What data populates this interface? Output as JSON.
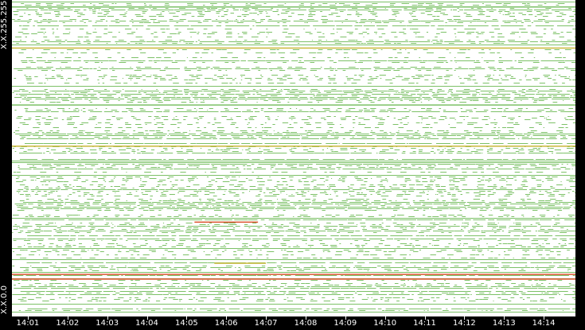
{
  "chart_data": {
    "type": "heatmap",
    "title": "",
    "y_axis": {
      "top_label": "X.X.255.255",
      "bottom_label": "X.X.0.0"
    },
    "x_axis": {
      "tick_labels": [
        "14:01",
        "14:02",
        "14:03",
        "14:04",
        "14:05",
        "14:06",
        "14:07",
        "14:08",
        "14:09",
        "14:10",
        "14:11",
        "14:12",
        "14:13",
        "14:14"
      ],
      "start_minute": 0.6,
      "end_minute": 14.8
    },
    "colors": {
      "background": "#000000",
      "plot_background": "#ffffff",
      "low_activity": "#7cc167",
      "medium_activity": "#c9b83a",
      "high_activity": "#d9532c",
      "axis_text": "#ffffff"
    },
    "activity_bands": [
      {
        "address_fraction": 0.98,
        "level": "low",
        "span_minutes": [
          0.6,
          14.8
        ]
      },
      {
        "address_fraction": 0.85,
        "level": "medium",
        "span_minutes": [
          0.6,
          14.8
        ]
      },
      {
        "address_fraction": 0.67,
        "level": "low",
        "span_minutes": [
          0.6,
          14.8
        ]
      },
      {
        "address_fraction": 0.54,
        "level": "medium",
        "span_minutes": [
          0.6,
          14.8
        ]
      },
      {
        "address_fraction": 0.3,
        "level": "high",
        "span_minutes": [
          5.2,
          6.8
        ]
      },
      {
        "address_fraction": 0.17,
        "level": "medium",
        "span_minutes": [
          5.7,
          7.0
        ]
      },
      {
        "address_fraction": 0.135,
        "level": "high",
        "span_minutes": [
          0.6,
          14.8
        ]
      },
      {
        "address_fraction": 0.12,
        "level": "high",
        "span_minutes": [
          0.6,
          14.8
        ]
      }
    ]
  }
}
